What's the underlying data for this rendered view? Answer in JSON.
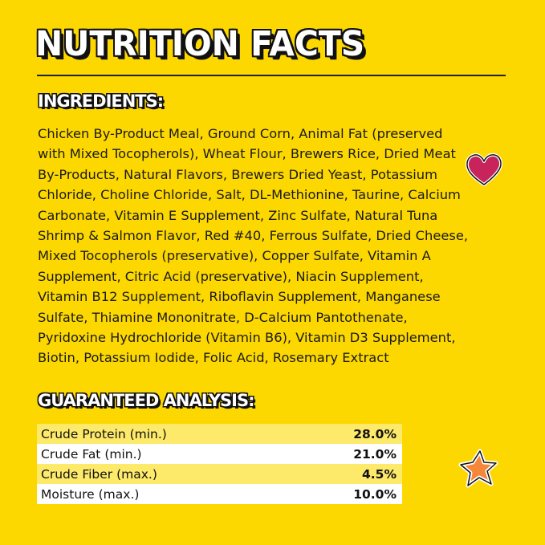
{
  "title": "NUTRITION FACTS",
  "ingredients": {
    "heading": "INGREDIENTS:",
    "lines": [
      "Chicken By-Product Meal, Ground Corn, Animal Fat (preserved",
      "with Mixed Tocopherols), Wheat Flour, Brewers Rice, Dried Meat",
      "By-Products, Natural Flavors, Brewers Dried Yeast, Potassium",
      "Chloride, Choline Chloride, Salt, DL-Methionine, Taurine, Calcium",
      "Carbonate, Vitamin E Supplement, Zinc Sulfate, Natural Tuna",
      "Shrimp & Salmon Flavor, Red #40, Ferrous Sulfate, Dried Cheese,",
      "Mixed Tocopherols (preservative), Copper Sulfate, Vitamin A",
      "Supplement, Citric Acid (preservative), Niacin Supplement,",
      "Vitamin B12 Supplement, Riboflavin Supplement, Manganese",
      "Sulfate, Thiamine Mononitrate, D-Calcium Pantothenate,",
      "Pyridoxine Hydrochloride (Vitamin B6), Vitamin D3 Supplement,",
      "Biotin, Potassium Iodide, Folic Acid, Rosemary Extract"
    ]
  },
  "analysis": {
    "heading": "GUARANTEED ANALYSIS:",
    "rows": [
      {
        "label": "Crude Protein (min.)",
        "value": "28.0%"
      },
      {
        "label": "Crude Fat (min.)",
        "value": "21.0%"
      },
      {
        "label": "Crude Fiber (max.)",
        "value": "4.5%"
      },
      {
        "label": "Moisture (max.)",
        "value": "10.0%"
      }
    ]
  },
  "colors": {
    "background": "#fdd800",
    "heart": "#c8235a",
    "star": "#f5873a",
    "row_highlight": "#fde96a"
  },
  "icons": [
    "heart-icon",
    "star-icon"
  ]
}
